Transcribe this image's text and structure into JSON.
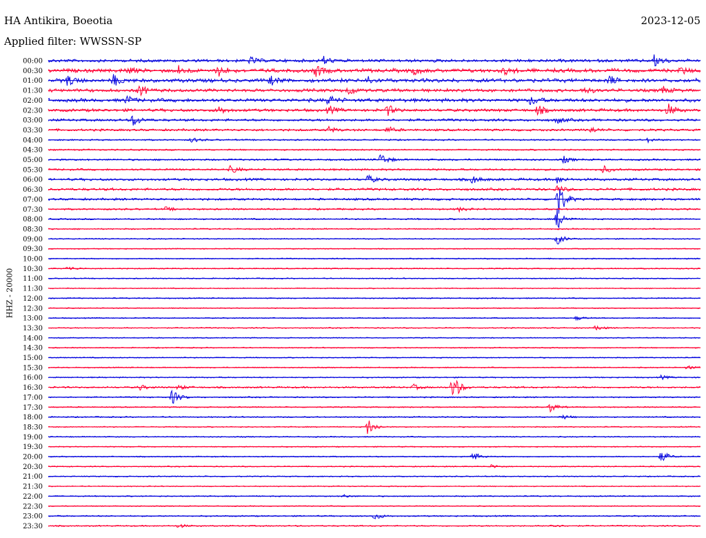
{
  "header": {
    "station": "HA Antikira, Boeotia",
    "date": "2023-12-05",
    "filter": "Applied filter: WWSSN-SP"
  },
  "chart_data": {
    "type": "line",
    "title": "HA Antikira, Boeotia",
    "date": "2023-12-05",
    "filter": "WWSSN-SP",
    "ylabel": "HHZ - 20000",
    "colors": [
      "#0000dd",
      "#ff0033"
    ],
    "rows": [
      {
        "time": "00:00",
        "activity": 0.45,
        "events": [
          {
            "x": 0.31,
            "a": 0.5
          },
          {
            "x": 0.42,
            "a": 0.7
          },
          {
            "x": 0.93,
            "a": 1.0
          }
        ]
      },
      {
        "time": "00:30",
        "activity": 0.6,
        "events": [
          {
            "x": 0.12,
            "a": 0.5
          },
          {
            "x": 0.2,
            "a": 0.6
          },
          {
            "x": 0.26,
            "a": 0.9
          },
          {
            "x": 0.41,
            "a": 0.9
          },
          {
            "x": 0.56,
            "a": 0.6
          },
          {
            "x": 0.7,
            "a": 0.5
          },
          {
            "x": 0.97,
            "a": 0.5
          }
        ]
      },
      {
        "time": "01:00",
        "activity": 0.6,
        "events": [
          {
            "x": 0.03,
            "a": 0.8
          },
          {
            "x": 0.1,
            "a": 0.8
          },
          {
            "x": 0.34,
            "a": 0.6
          },
          {
            "x": 0.49,
            "a": 0.6
          },
          {
            "x": 0.86,
            "a": 0.7
          }
        ]
      },
      {
        "time": "01:30",
        "activity": 0.5,
        "events": [
          {
            "x": 0.14,
            "a": 0.8
          },
          {
            "x": 0.46,
            "a": 0.7
          },
          {
            "x": 0.82,
            "a": 0.5
          },
          {
            "x": 0.94,
            "a": 0.6
          }
        ]
      },
      {
        "time": "02:00",
        "activity": 0.55,
        "events": [
          {
            "x": 0.12,
            "a": 0.6
          },
          {
            "x": 0.43,
            "a": 0.7
          },
          {
            "x": 0.74,
            "a": 0.7
          }
        ]
      },
      {
        "time": "02:30",
        "activity": 0.45,
        "events": [
          {
            "x": 0.26,
            "a": 0.6
          },
          {
            "x": 0.43,
            "a": 0.6
          },
          {
            "x": 0.52,
            "a": 0.8
          },
          {
            "x": 0.75,
            "a": 0.7
          },
          {
            "x": 0.95,
            "a": 0.9
          }
        ]
      },
      {
        "time": "03:00",
        "activity": 0.35,
        "events": [
          {
            "x": 0.13,
            "a": 0.9
          },
          {
            "x": 0.78,
            "a": 0.5
          }
        ]
      },
      {
        "time": "03:30",
        "activity": 0.3,
        "events": [
          {
            "x": 0.43,
            "a": 0.5
          },
          {
            "x": 0.52,
            "a": 0.5
          },
          {
            "x": 0.83,
            "a": 0.5
          }
        ]
      },
      {
        "time": "04:00",
        "activity": 0.15,
        "events": [
          {
            "x": 0.22,
            "a": 0.4
          },
          {
            "x": 0.92,
            "a": 0.3
          }
        ]
      },
      {
        "time": "04:30",
        "activity": 0.15,
        "events": []
      },
      {
        "time": "05:00",
        "activity": 0.2,
        "events": [
          {
            "x": 0.51,
            "a": 1.0
          },
          {
            "x": 0.79,
            "a": 0.5
          }
        ]
      },
      {
        "time": "05:30",
        "activity": 0.25,
        "events": [
          {
            "x": 0.28,
            "a": 0.6
          },
          {
            "x": 0.85,
            "a": 0.6
          }
        ]
      },
      {
        "time": "06:00",
        "activity": 0.35,
        "events": [
          {
            "x": 0.49,
            "a": 0.6
          },
          {
            "x": 0.65,
            "a": 0.6
          },
          {
            "x": 0.78,
            "a": 0.5
          }
        ]
      },
      {
        "time": "06:30",
        "activity": 0.35,
        "events": [
          {
            "x": 0.78,
            "a": 0.6
          }
        ]
      },
      {
        "time": "07:00",
        "activity": 0.3,
        "events": [
          {
            "x": 0.78,
            "a": 3.2
          }
        ]
      },
      {
        "time": "07:30",
        "activity": 0.2,
        "events": [
          {
            "x": 0.18,
            "a": 0.3
          },
          {
            "x": 0.63,
            "a": 0.3
          }
        ]
      },
      {
        "time": "08:00",
        "activity": 0.15,
        "events": [
          {
            "x": 0.78,
            "a": 1.6
          }
        ]
      },
      {
        "time": "08:30",
        "activity": 0.12,
        "events": []
      },
      {
        "time": "09:00",
        "activity": 0.08,
        "events": [
          {
            "x": 0.78,
            "a": 0.9
          }
        ]
      },
      {
        "time": "09:30",
        "activity": 0.05,
        "events": []
      },
      {
        "time": "10:00",
        "activity": 0.08,
        "events": []
      },
      {
        "time": "10:30",
        "activity": 0.1,
        "events": [
          {
            "x": 0.03,
            "a": 0.35
          }
        ]
      },
      {
        "time": "11:00",
        "activity": 0.08,
        "events": []
      },
      {
        "time": "11:30",
        "activity": 0.06,
        "events": []
      },
      {
        "time": "12:00",
        "activity": 0.08,
        "events": []
      },
      {
        "time": "12:30",
        "activity": 0.06,
        "events": []
      },
      {
        "time": "13:00",
        "activity": 0.08,
        "events": [
          {
            "x": 0.81,
            "a": 0.3
          }
        ]
      },
      {
        "time": "13:30",
        "activity": 0.08,
        "events": [
          {
            "x": 0.84,
            "a": 0.4
          }
        ]
      },
      {
        "time": "14:00",
        "activity": 0.06,
        "events": []
      },
      {
        "time": "14:30",
        "activity": 0.08,
        "events": []
      },
      {
        "time": "15:00",
        "activity": 0.06,
        "events": []
      },
      {
        "time": "15:30",
        "activity": 0.08,
        "events": [
          {
            "x": 0.98,
            "a": 0.3
          }
        ]
      },
      {
        "time": "16:00",
        "activity": 0.1,
        "events": [
          {
            "x": 0.94,
            "a": 0.3
          }
        ]
      },
      {
        "time": "16:30",
        "activity": 0.2,
        "events": [
          {
            "x": 0.14,
            "a": 0.4
          },
          {
            "x": 0.2,
            "a": 0.4
          },
          {
            "x": 0.56,
            "a": 0.4
          },
          {
            "x": 0.62,
            "a": 2.2
          }
        ]
      },
      {
        "time": "17:00",
        "activity": 0.12,
        "events": [
          {
            "x": 0.19,
            "a": 1.1
          }
        ]
      },
      {
        "time": "17:30",
        "activity": 0.1,
        "events": [
          {
            "x": 0.77,
            "a": 0.8
          }
        ]
      },
      {
        "time": "18:00",
        "activity": 0.1,
        "events": [
          {
            "x": 0.79,
            "a": 0.3
          }
        ]
      },
      {
        "time": "18:30",
        "activity": 0.08,
        "events": [
          {
            "x": 0.49,
            "a": 1.3
          }
        ]
      },
      {
        "time": "19:00",
        "activity": 0.08,
        "events": []
      },
      {
        "time": "19:30",
        "activity": 0.06,
        "events": []
      },
      {
        "time": "20:00",
        "activity": 0.08,
        "events": [
          {
            "x": 0.65,
            "a": 0.8
          },
          {
            "x": 0.94,
            "a": 0.9
          }
        ]
      },
      {
        "time": "20:30",
        "activity": 0.08,
        "events": [
          {
            "x": 0.68,
            "a": 0.3
          }
        ]
      },
      {
        "time": "21:00",
        "activity": 0.08,
        "events": []
      },
      {
        "time": "21:30",
        "activity": 0.06,
        "events": []
      },
      {
        "time": "22:00",
        "activity": 0.08,
        "events": [
          {
            "x": 0.45,
            "a": 0.3
          }
        ]
      },
      {
        "time": "22:30",
        "activity": 0.06,
        "events": []
      },
      {
        "time": "23:00",
        "activity": 0.12,
        "events": [
          {
            "x": 0.5,
            "a": 0.6
          }
        ]
      },
      {
        "time": "23:30",
        "activity": 0.12,
        "events": [
          {
            "x": 0.2,
            "a": 0.3
          },
          {
            "x": 0.77,
            "a": 0.3
          }
        ]
      }
    ]
  }
}
